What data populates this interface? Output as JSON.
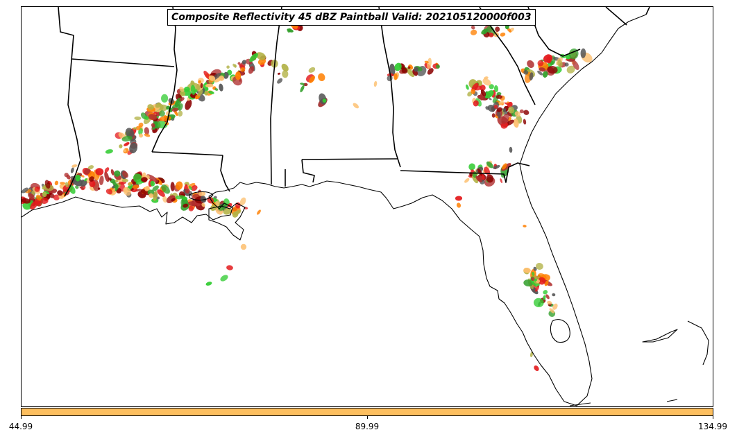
{
  "title": "Composite Reflectivity 45 dBZ Paintball Valid: 202105120000f003",
  "colorbar": {
    "ticks": [
      "44.99",
      "89.99",
      "134.99"
    ],
    "fill_color": "#fdbf5f"
  },
  "map": {
    "region": "Southeastern United States",
    "boundary_color": "#000000",
    "land_color": "#ffffff",
    "member_colors": [
      "#e31a1c",
      "#ff7f00",
      "#fdbf6f",
      "#33cc33",
      "#33a02c",
      "#b2b246",
      "#8b0000",
      "#555555",
      "#b03030"
    ]
  }
}
